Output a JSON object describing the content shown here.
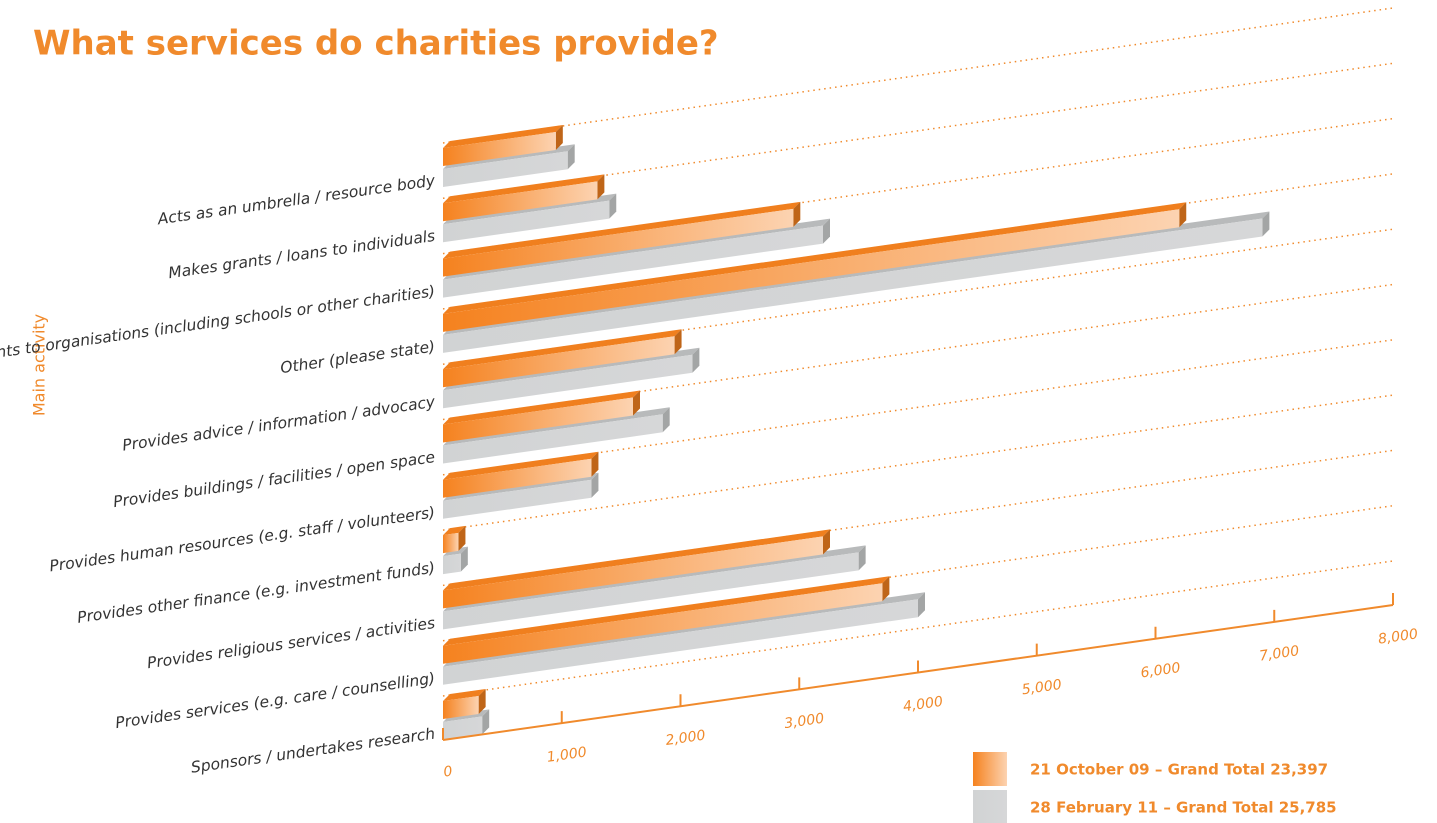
{
  "chart_data": {
    "type": "bar3d",
    "title": "What services do charities provide?",
    "y_label": "Main activity",
    "categories": [
      "Acts as an umbrella / resource body",
      "Makes grants / loans to individuals",
      "Makes grants to organisations (including schools or other charities)",
      "Other (please state)",
      "Provides advice / information / advocacy",
      "Provides buildings / facilities / open space",
      "Provides human resources (e.g. staff / volunteers)",
      "Provides other finance (e.g. investment funds)",
      "Provides religious services / activities",
      "Provides services (e.g. care / counselling)",
      "Sponsors / undertakes research"
    ],
    "series": [
      {
        "name": "21 October 09 – Grand Total 23,397",
        "color": "#f5821f",
        "values": [
          950,
          1300,
          2950,
          6200,
          1950,
          1600,
          1250,
          130,
          3200,
          3700,
          300
        ]
      },
      {
        "name": "28 February 11 – Grand Total 25,785",
        "color": "#d1d3d4",
        "values": [
          1050,
          1400,
          3200,
          6900,
          2100,
          1850,
          1250,
          150,
          3500,
          4000,
          330
        ]
      }
    ],
    "xlim": [
      0,
      8000
    ],
    "xticks": [
      0,
      {
        "value": 1000,
        "label": "1,000"
      },
      {
        "value": 2000,
        "label": "2,000"
      },
      {
        "value": 3000,
        "label": "3,000"
      },
      {
        "value": 4000,
        "label": "4,000"
      },
      {
        "value": 5000,
        "label": "5,000"
      },
      {
        "value": 6000,
        "label": "6,000"
      },
      {
        "value": 7000,
        "label": "7,000"
      },
      {
        "value": 8000,
        "label": "8,000"
      }
    ],
    "grid": true
  }
}
